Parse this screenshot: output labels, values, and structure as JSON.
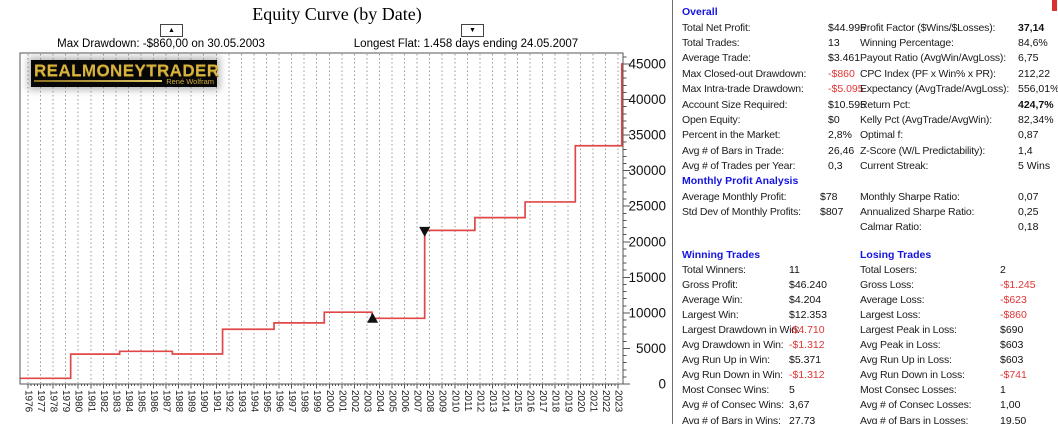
{
  "chart": {
    "title": "Equity Curve (by Date)",
    "annotations": {
      "max_drawdown": {
        "marker": "▲",
        "text": "Max Drawdown: -$860,00 on 30.05.2003"
      },
      "longest_flat": {
        "marker": "▼",
        "text": "Longest Flat: 1.458 days ending 24.05.2007"
      }
    },
    "logo": {
      "brand": "REALMONEYTRADER",
      "author": "René Wolfram"
    },
    "colors": {
      "curve": "#e04848",
      "grid": "#999999",
      "axis": "#555555",
      "marker": "#111111",
      "negative": "#e23535",
      "header_blue": "#1414e0",
      "logo_gold": "#d8b43e"
    }
  },
  "chart_data": {
    "type": "line",
    "subtype": "stepped-equity-curve",
    "title": "Equity Curve (by Date)",
    "xlabel": "",
    "ylabel": "",
    "ylim": [
      0,
      46500
    ],
    "grid": "vertical-dashed",
    "legend_position": "none",
    "x_tick_labels": [
      1976,
      1977,
      1978,
      1979,
      1980,
      1981,
      1982,
      1983,
      1984,
      1985,
      1986,
      1987,
      1988,
      1989,
      1990,
      1991,
      1992,
      1993,
      1994,
      1995,
      1996,
      1997,
      1998,
      1999,
      2000,
      2001,
      2002,
      2003,
      2004,
      2005,
      2006,
      2007,
      2008,
      2009,
      2010,
      2011,
      2012,
      2013,
      2014,
      2015,
      2016,
      2017,
      2018,
      2019,
      2020,
      2021,
      2022,
      2023
    ],
    "y_ticks": [
      0,
      5000,
      10000,
      15000,
      20000,
      25000,
      30000,
      35000,
      40000,
      45000
    ],
    "steps": [
      {
        "year": 1975.4,
        "equity": 800
      },
      {
        "year": 1979.4,
        "equity": 4200
      },
      {
        "year": 1983.3,
        "equity": 4600
      },
      {
        "year": 1987.5,
        "equity": 4215
      },
      {
        "year": 1991.5,
        "equity": 7700
      },
      {
        "year": 1995.6,
        "equity": 8600
      },
      {
        "year": 1999.6,
        "equity": 10100
      },
      {
        "year": 2003.4,
        "equity": 9240
      },
      {
        "year": 2007.6,
        "equity": 21600
      },
      {
        "year": 2011.6,
        "equity": 23400
      },
      {
        "year": 2015.6,
        "equity": 25600
      },
      {
        "year": 2019.6,
        "equity": 33500
      },
      {
        "year": 2023.3,
        "equity": 45000
      }
    ],
    "markers": [
      {
        "glyph": "▲",
        "year": 2003.45,
        "equity": 9240,
        "meaning": "max-drawdown"
      },
      {
        "glyph": "▼",
        "year": 2007.6,
        "equity": 21600,
        "meaning": "longest-flat-end"
      }
    ]
  },
  "stats": {
    "sections": [
      {
        "id": "overall",
        "title": "Overall",
        "columns": [
          {
            "rows": [
              {
                "label": "Total Net Profit:",
                "value": "$44.995"
              },
              {
                "label": "Total Trades:",
                "value": "13"
              },
              {
                "label": "Average Trade:",
                "value": "$3.461"
              },
              {
                "label": "Max Closed-out Drawdown:",
                "value": "-$860",
                "neg": true
              },
              {
                "label": "Max Intra-trade Drawdown:",
                "value": "-$5.095",
                "neg": true
              },
              {
                "label": "Account Size Required:",
                "value": "$10.595"
              },
              {
                "label": "Open Equity:",
                "value": "$0"
              },
              {
                "label": "Percent in the Market:",
                "value": "2,8%"
              },
              {
                "label": "Avg # of Bars in Trade:",
                "value": "26,46"
              },
              {
                "label": "Avg # of Trades per Year:",
                "value": "0,3"
              }
            ]
          },
          {
            "rows": [
              {
                "label": "Profit Factor ($Wins/$Losses):",
                "value": "37,14",
                "bold": true
              },
              {
                "label": "Winning Percentage:",
                "value": "84,6%"
              },
              {
                "label": "Payout Ratio (AvgWin/AvgLoss):",
                "value": "6,75"
              },
              {
                "label": "CPC Index (PF x Win% x PR):",
                "value": "212,22"
              },
              {
                "label": "Expectancy (AvgTrade/AvgLoss):",
                "value": "556,01%"
              },
              {
                "label": "Return Pct:",
                "value": "424,7%",
                "bold": true
              },
              {
                "label": "Kelly Pct (AvgTrade/AvgWin):",
                "value": "82,34%"
              },
              {
                "label": "Optimal f:",
                "value": "0,87"
              },
              {
                "label": "Z-Score (W/L Predictability):",
                "value": "1,4"
              },
              {
                "label": "Current Streak:",
                "value": "5 Wins"
              }
            ]
          }
        ]
      },
      {
        "id": "monthly",
        "title": "Monthly Profit Analysis",
        "columns": [
          {
            "rows": [
              {
                "label": "Average Monthly Profit:",
                "value": "$78"
              },
              {
                "label": "Std Dev of Monthly Profits:",
                "value": "$807"
              }
            ]
          },
          {
            "rows": [
              {
                "label": "Monthly Sharpe Ratio:",
                "value": "0,07"
              },
              {
                "label": "Annualized Sharpe Ratio:",
                "value": "0,25"
              },
              {
                "label": "Calmar Ratio:",
                "value": "0,18"
              }
            ]
          }
        ]
      },
      {
        "id": "winning",
        "title": "Winning Trades",
        "columns": [
          {
            "rows": [
              {
                "label": "Total Winners:",
                "value": "11"
              },
              {
                "label": "Gross Profit:",
                "value": "$46.240"
              },
              {
                "label": "Average Win:",
                "value": "$4.204"
              },
              {
                "label": "Largest Win:",
                "value": "$12.353"
              },
              {
                "label": "Largest Drawdown in Win:",
                "value": "-$4.710",
                "neg": true
              },
              {
                "label": "Avg Drawdown in Win:",
                "value": "-$1.312",
                "neg": true
              },
              {
                "label": "Avg Run Up in Win:",
                "value": "$5.371"
              },
              {
                "label": "Avg Run Down in Win:",
                "value": "-$1.312",
                "neg": true
              },
              {
                "label": "Most Consec Wins:",
                "value": "5"
              },
              {
                "label": "Avg # of Consec Wins:",
                "value": "3,67"
              },
              {
                "label": "Avg # of Bars in Wins:",
                "value": "27,73"
              }
            ]
          }
        ]
      },
      {
        "id": "losing",
        "title": "Losing Trades",
        "columns": [
          {
            "rows": [
              {
                "label": "Total Losers:",
                "value": "2"
              },
              {
                "label": "Gross Loss:",
                "value": "-$1.245",
                "neg": true
              },
              {
                "label": "Average Loss:",
                "value": "-$623",
                "neg": true
              },
              {
                "label": "Largest Loss:",
                "value": "-$860",
                "neg": true
              },
              {
                "label": "Largest Peak in Loss:",
                "value": "$690"
              },
              {
                "label": "Avg Peak in Loss:",
                "value": "$603"
              },
              {
                "label": "Avg Run Up in Loss:",
                "value": "$603"
              },
              {
                "label": "Avg Run Down in Loss:",
                "value": "-$741",
                "neg": true
              },
              {
                "label": "Most Consec Losses:",
                "value": "1"
              },
              {
                "label": "Avg # of Consec Losses:",
                "value": "1,00"
              },
              {
                "label": "Avg # of Bars in Losses:",
                "value": "19,50"
              }
            ]
          }
        ]
      }
    ]
  }
}
